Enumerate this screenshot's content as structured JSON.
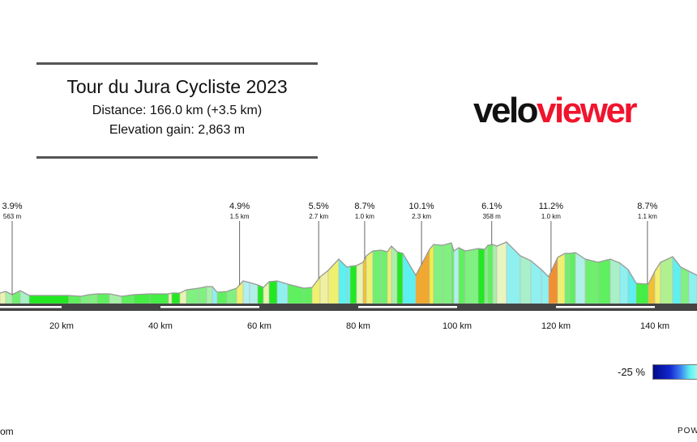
{
  "header": {
    "title": "Tour du Jura Cycliste 2023",
    "distance": "Distance: 166.0 km (+3.5 km)",
    "elevation_gain": "Elevation gain: 2,863 m"
  },
  "logo": {
    "part1": "velo",
    "part2": "viewer",
    "colors": {
      "velo": "#111111",
      "viewer": "#f0142d"
    }
  },
  "legend": {
    "min_label": "-25 %"
  },
  "footer": {
    "left_text": "om",
    "right_text": "POW"
  },
  "chart_data": {
    "type": "area",
    "title": "Tour du Jura Cycliste 2023",
    "xlabel": "",
    "ylabel": "",
    "x_unit": "km",
    "x_ticks": [
      "20 km",
      "40 km",
      "60 km",
      "80 km",
      "100 km",
      "120 km",
      "140 km"
    ],
    "x_tick_values": [
      20,
      40,
      60,
      80,
      100,
      120,
      140
    ],
    "colormap": "gradient % (blue = descent, green = flat, yellow/orange = climb)",
    "climbs": [
      {
        "km": 10,
        "gradient": "3.9%",
        "length": "563 m"
      },
      {
        "km": 56,
        "gradient": "4.9%",
        "length": "1.5 km"
      },
      {
        "km": 72,
        "gradient": "5.5%",
        "length": "2.7 km"
      },
      {
        "km": 81.3,
        "gradient": "8.7%",
        "length": "1.0 km"
      },
      {
        "km": 92.8,
        "gradient": "10.1%",
        "length": "2.3 km"
      },
      {
        "km": 107,
        "gradient": "6.1%",
        "length": "358 m"
      },
      {
        "km": 119,
        "gradient": "11.2%",
        "length": "1.0 km"
      },
      {
        "km": 138.5,
        "gradient": "8.7%",
        "length": "1.1 km"
      }
    ]
  }
}
